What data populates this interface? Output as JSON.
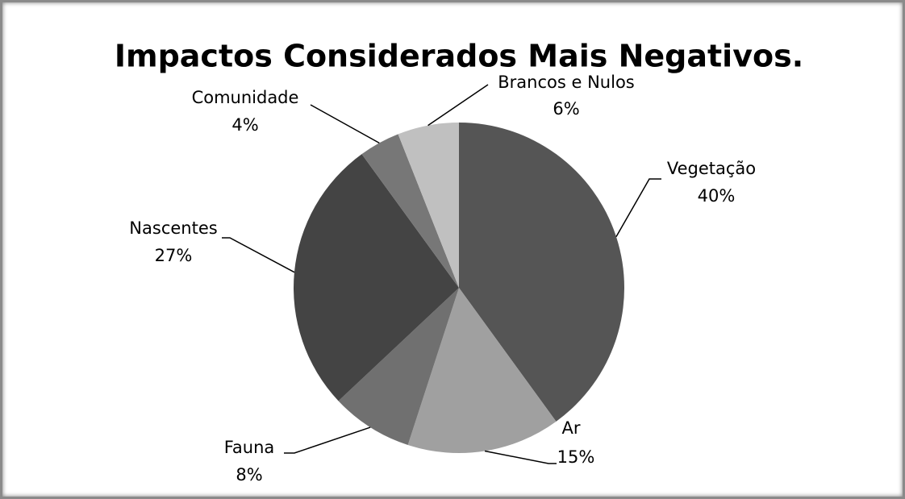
{
  "chart_data": {
    "type": "pie",
    "title": "Impactos Considerados Mais Negativos.",
    "categories": [
      "Vegetação",
      "Ar",
      "Fauna",
      "Nascentes",
      "Comunidade",
      "Brancos e Nulos"
    ],
    "values": [
      40,
      15,
      8,
      27,
      4,
      6
    ],
    "value_labels": [
      "40%",
      "15%",
      "8%",
      "27%",
      "4%",
      "6%"
    ],
    "colors": [
      "#555555",
      "#a0a0a0",
      "#707070",
      "#444444",
      "#777777",
      "#c0c0c0"
    ]
  }
}
